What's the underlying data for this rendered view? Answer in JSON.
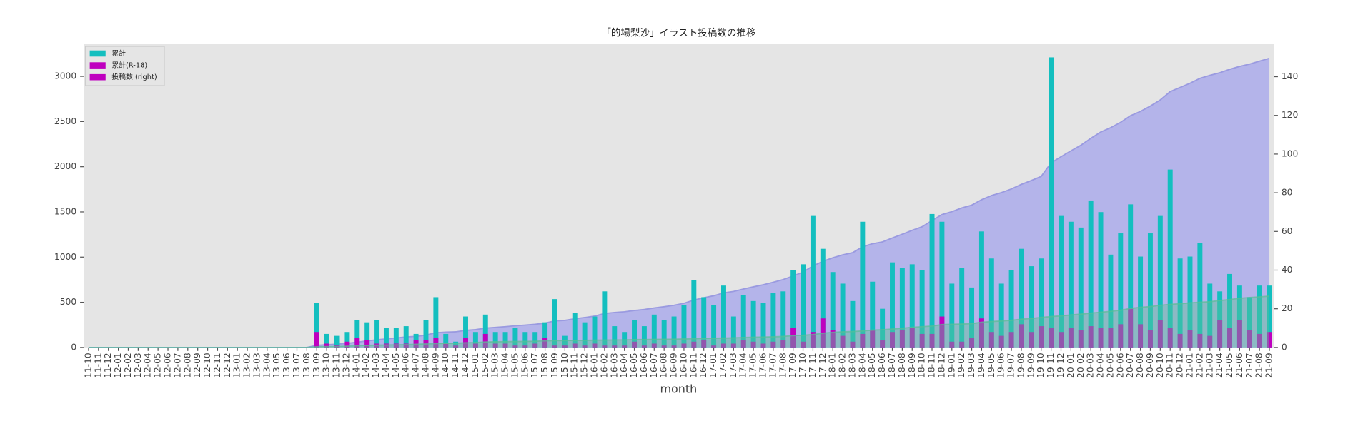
{
  "chart_data": {
    "type": "bar_area",
    "title": "「的場梨沙」イラスト投稿数の推移",
    "xlabel": "month",
    "categories": [
      "11-10",
      "11-11",
      "11-12",
      "12-01",
      "12-02",
      "12-03",
      "12-04",
      "12-05",
      "12-06",
      "12-07",
      "12-08",
      "12-09",
      "12-10",
      "12-11",
      "12-12",
      "13-01",
      "13-02",
      "13-03",
      "13-04",
      "13-05",
      "13-06",
      "13-07",
      "13-08",
      "13-09",
      "13-10",
      "13-11",
      "13-12",
      "14-01",
      "14-02",
      "14-03",
      "14-04",
      "14-05",
      "14-06",
      "14-07",
      "14-08",
      "14-09",
      "14-10",
      "14-11",
      "14-12",
      "15-01",
      "15-02",
      "15-03",
      "15-04",
      "15-05",
      "15-06",
      "15-07",
      "15-08",
      "15-09",
      "15-10",
      "15-11",
      "15-12",
      "16-01",
      "16-02",
      "16-03",
      "16-04",
      "16-05",
      "16-06",
      "16-07",
      "16-08",
      "16-09",
      "16-10",
      "16-11",
      "16-12",
      "17-01",
      "17-02",
      "17-03",
      "17-04",
      "17-05",
      "17-06",
      "17-07",
      "17-08",
      "17-09",
      "17-10",
      "17-11",
      "17-12",
      "18-01",
      "18-02",
      "18-03",
      "18-04",
      "18-05",
      "18-06",
      "18-07",
      "18-08",
      "18-09",
      "18-10",
      "18-11",
      "18-12",
      "19-01",
      "19-02",
      "19-03",
      "19-04",
      "19-05",
      "19-06",
      "19-07",
      "19-08",
      "19-09",
      "19-10",
      "19-11",
      "19-12",
      "20-01",
      "20-02",
      "20-03",
      "20-04",
      "20-05",
      "20-06",
      "20-07",
      "20-08",
      "20-09",
      "20-10",
      "20-11",
      "20-12",
      "21-01",
      "21-02",
      "21-03",
      "21-04",
      "21-05",
      "21-06",
      "21-07",
      "21-08",
      "21-09"
    ],
    "series": [
      {
        "kind": "area",
        "axis": "y",
        "color": "#b4b4ea",
        "line_color": "#9a9ae0",
        "values": [
          0,
          0,
          0,
          0,
          0,
          0,
          0,
          0,
          0,
          0,
          0,
          0,
          0,
          0,
          0,
          0,
          0,
          0,
          0,
          0,
          0,
          0,
          0,
          23,
          30,
          36,
          44,
          58,
          71,
          85,
          95,
          105,
          116,
          123,
          137,
          163,
          170,
          173,
          189,
          197,
          214,
          222,
          230,
          240,
          248,
          256,
          269,
          294,
          300,
          318,
          331,
          347,
          376,
          387,
          395,
          409,
          420,
          437,
          451,
          467,
          489,
          524,
          550,
          572,
          604,
          620,
          647,
          671,
          694,
          722,
          751,
          791,
          834,
          902,
          953,
          992,
          1025,
          1049,
          1114,
          1148,
          1168,
          1212,
          1253,
          1296,
          1336,
          1405,
          1470,
          1503,
          1544,
          1575,
          1635,
          1681,
          1714,
          1754,
          1805,
          1847,
          1893,
          2043,
          2111,
          2176,
          2238,
          2314,
          2384,
          2432,
          2491,
          2565,
          2612,
          2671,
          2739,
          2831,
          2877,
          2924,
          2978,
          3011,
          3040,
          3078,
          3110,
          3136,
          3168,
          3200
        ]
      },
      {
        "kind": "bar",
        "axis": "y2",
        "color": "#13bfbf",
        "values": [
          0,
          0,
          0,
          0,
          0,
          0,
          0,
          0,
          0,
          0,
          0,
          0,
          0,
          0,
          0,
          0,
          0,
          0,
          0,
          0,
          0,
          0,
          0,
          23,
          7,
          6,
          8,
          14,
          13,
          14,
          10,
          10,
          11,
          7,
          14,
          26,
          7,
          3,
          16,
          8,
          17,
          8,
          8,
          10,
          8,
          8,
          13,
          25,
          6,
          18,
          13,
          16,
          29,
          11,
          8,
          14,
          11,
          17,
          14,
          16,
          22,
          35,
          26,
          22,
          32,
          16,
          27,
          24,
          23,
          28,
          29,
          40,
          43,
          68,
          51,
          39,
          33,
          24,
          65,
          34,
          20,
          44,
          41,
          43,
          40,
          69,
          65,
          33,
          41,
          31,
          60,
          46,
          33,
          40,
          51,
          42,
          46,
          150,
          68,
          65,
          62,
          76,
          70,
          48,
          59,
          74,
          47,
          59,
          68,
          92,
          46,
          47,
          54,
          33,
          29,
          38,
          32,
          26,
          32,
          32
        ]
      },
      {
        "kind": "bar",
        "axis": "y2",
        "color": "#bf00bf",
        "values": [
          0,
          0,
          0,
          0,
          0,
          0,
          0,
          0,
          0,
          0,
          0,
          0,
          0,
          0,
          0,
          0,
          0,
          0,
          0,
          0,
          0,
          0,
          0,
          8,
          2,
          1,
          3,
          5,
          4,
          2,
          2,
          2,
          2,
          4,
          4,
          5,
          2,
          1,
          5,
          2,
          7,
          2,
          2,
          1,
          1,
          2,
          5,
          1,
          1,
          2,
          1,
          2,
          1,
          1,
          1,
          3,
          1,
          2,
          1,
          1,
          2,
          3,
          4,
          1,
          2,
          2,
          4,
          3,
          2,
          3,
          4,
          10,
          3,
          8,
          15,
          9,
          6,
          3,
          7,
          9,
          4,
          8,
          9,
          10,
          7,
          7,
          16,
          3,
          3,
          5,
          15,
          8,
          6,
          8,
          12,
          8,
          11,
          10,
          8,
          10,
          9,
          11,
          10,
          10,
          12,
          20,
          12,
          9,
          14,
          10,
          7,
          9,
          7,
          6,
          14,
          10,
          14,
          9,
          7,
          8
        ]
      },
      {
        "kind": "area",
        "axis": "y",
        "color": "rgba(90,190,150,0.45)",
        "line_color": "rgba(90,190,150,0.7)",
        "values": [
          0,
          0,
          0,
          0,
          0,
          0,
          0,
          0,
          0,
          0,
          0,
          0,
          0,
          0,
          0,
          0,
          0,
          0,
          0,
          0,
          0,
          0,
          0,
          8,
          10,
          11,
          14,
          19,
          23,
          25,
          27,
          29,
          31,
          35,
          39,
          44,
          46,
          47,
          52,
          54,
          61,
          63,
          65,
          66,
          67,
          69,
          74,
          75,
          76,
          78,
          79,
          81,
          82,
          83,
          84,
          87,
          88,
          90,
          91,
          92,
          94,
          97,
          101,
          102,
          104,
          106,
          110,
          113,
          115,
          118,
          122,
          132,
          135,
          143,
          158,
          167,
          173,
          176,
          183,
          192,
          196,
          204,
          213,
          223,
          230,
          237,
          253,
          256,
          259,
          264,
          279,
          287,
          293,
          301,
          313,
          321,
          332,
          342,
          350,
          360,
          369,
          380,
          390,
          400,
          412,
          432,
          444,
          453,
          467,
          477,
          484,
          493,
          500,
          506,
          520,
          530,
          544,
          553,
          560,
          568
        ]
      }
    ],
    "legend": [
      {
        "name": "累計",
        "color": "#13bfbf"
      },
      {
        "name": "累計(R-18)",
        "color": "#bf00bf"
      },
      {
        "name": "投稿数 (right)",
        "color": "#bf00bf"
      }
    ],
    "legend_position": "upper left",
    "ylim": [
      0,
      3360
    ],
    "yticks": [
      0,
      500,
      1000,
      1500,
      2000,
      2500,
      3000
    ],
    "y2lim": [
      0,
      157
    ],
    "y2ticks": [
      0,
      20,
      40,
      60,
      80,
      100,
      120,
      140
    ]
  }
}
